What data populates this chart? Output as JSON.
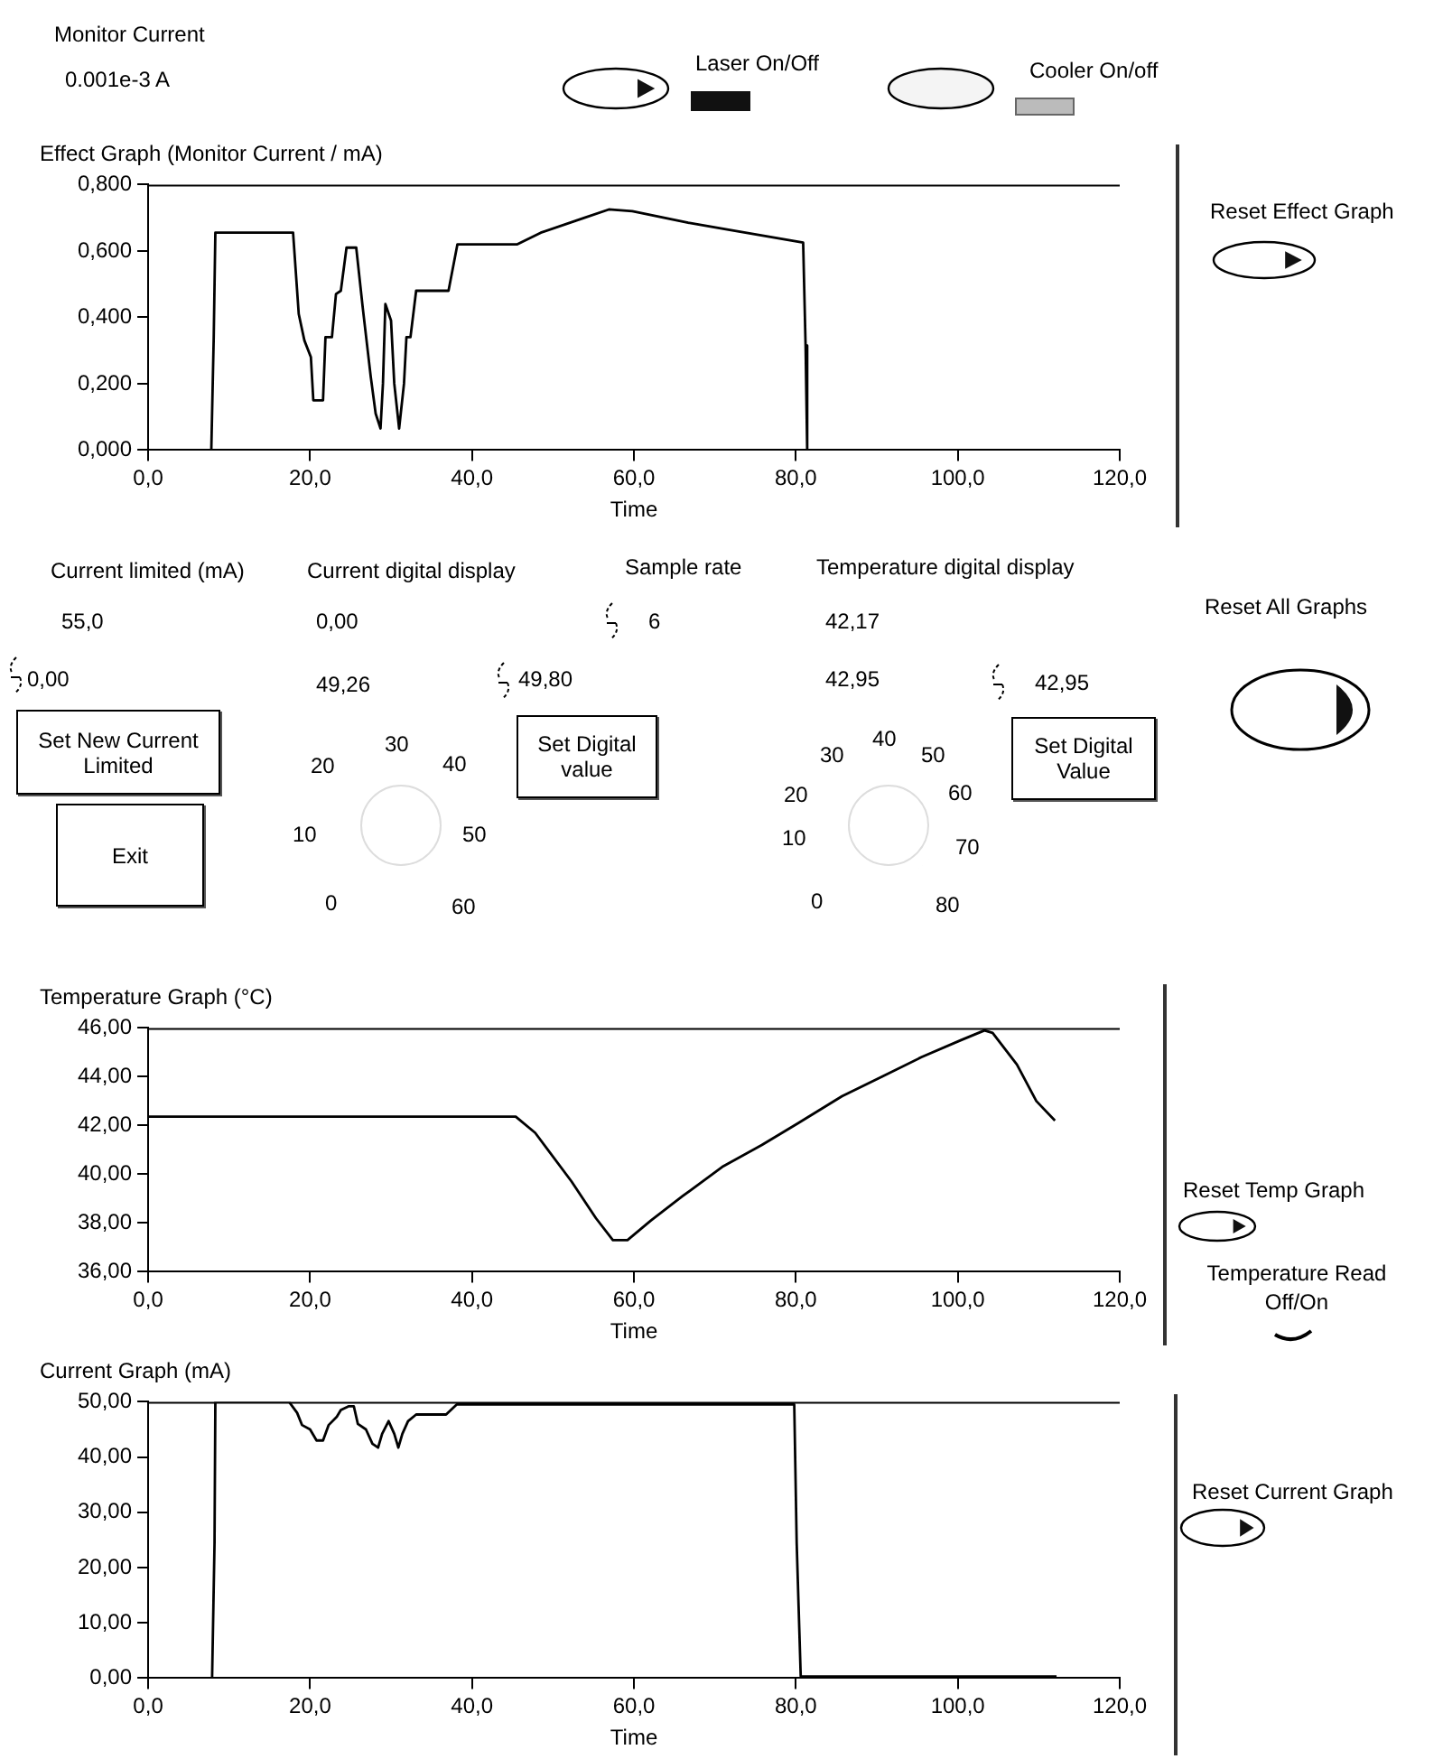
{
  "chart_data": [
    {
      "type": "line",
      "title": "Effect Graph (Monitor Current / mA)",
      "xlabel": "Time",
      "color": "#000000",
      "x": [
        0,
        7.8,
        8.1,
        8.3,
        17.9,
        18.6,
        19.3,
        20.1,
        20.4,
        21.6,
        21.9,
        22.7,
        23.2,
        23.8,
        24.5,
        25.7,
        26.5,
        27.5,
        28.1,
        28.7,
        29.0,
        29.3,
        30.0,
        30.4,
        31.0,
        31.6,
        31.9,
        32.4,
        33.1,
        37.1,
        38.2,
        45.6,
        48.5,
        53.9,
        56.9,
        59.8,
        66.7,
        80.9,
        81.2,
        81.4,
        112.3
      ],
      "values": [
        0,
        0,
        0.34,
        0.655,
        0.655,
        0.41,
        0.33,
        0.28,
        0.15,
        0.15,
        0.34,
        0.34,
        0.47,
        0.48,
        0.61,
        0.61,
        0.43,
        0.22,
        0.11,
        0.065,
        0.2,
        0.44,
        0.39,
        0.2,
        0.065,
        0.2,
        0.34,
        0.34,
        0.48,
        0.48,
        0.62,
        0.62,
        0.655,
        0.7,
        0.725,
        0.72,
        0.685,
        0.625,
        0.315,
        0,
        0
      ],
      "xlim": [
        0,
        120
      ],
      "xticks": [
        {
          "value": 0,
          "label": "0,0"
        },
        {
          "value": 20,
          "label": "20,0"
        },
        {
          "value": 40,
          "label": "40,0"
        },
        {
          "value": 60,
          "label": "60,0"
        },
        {
          "value": 80,
          "label": "80,0"
        },
        {
          "value": 100,
          "label": "100,0"
        },
        {
          "value": 120,
          "label": "120,0"
        }
      ],
      "ylim": [
        0,
        0.8
      ],
      "yticks": [
        {
          "value": 0,
          "label": "0,000"
        },
        {
          "value": 0.2,
          "label": "0,200"
        },
        {
          "value": 0.4,
          "label": "0,400"
        },
        {
          "value": 0.6,
          "label": "0,600"
        },
        {
          "value": 0.8,
          "label": "0,800"
        }
      ]
    },
    {
      "type": "line",
      "title": "Temperature Graph (°C)",
      "xlabel": "Time",
      "color": "#000000",
      "x": [
        0,
        45.4,
        47.8,
        52.3,
        55.3,
        57.4,
        59.2,
        62.1,
        66.0,
        70.9,
        75.8,
        80.3,
        85.7,
        90.6,
        95.5,
        100.4,
        103.3,
        104.3,
        107.3,
        109.7,
        112.0
      ],
      "values": [
        42.36,
        42.36,
        41.7,
        39.7,
        38.2,
        37.3,
        37.3,
        38.1,
        39.1,
        40.3,
        41.2,
        42.1,
        43.2,
        44.0,
        44.8,
        45.5,
        45.9,
        45.8,
        44.5,
        43.0,
        42.2
      ],
      "xlim": [
        0,
        120
      ],
      "xticks": [
        {
          "value": 0,
          "label": "0,0"
        },
        {
          "value": 20,
          "label": "20,0"
        },
        {
          "value": 40,
          "label": "40,0"
        },
        {
          "value": 60,
          "label": "60,0"
        },
        {
          "value": 80,
          "label": "80,0"
        },
        {
          "value": 100,
          "label": "100,0"
        },
        {
          "value": 120,
          "label": "120,0"
        }
      ],
      "ylim": [
        36,
        46
      ],
      "yticks": [
        {
          "value": 36,
          "label": "36,00"
        },
        {
          "value": 38,
          "label": "38,00"
        },
        {
          "value": 40,
          "label": "40,00"
        },
        {
          "value": 42,
          "label": "42,00"
        },
        {
          "value": 44,
          "label": "44,00"
        },
        {
          "value": 46,
          "label": "46,00"
        }
      ]
    },
    {
      "type": "line",
      "title": "Current Graph (mA)",
      "xlabel": "Time",
      "color": "#000000",
      "x": [
        0,
        7.9,
        8.2,
        8.3,
        17.4,
        18.4,
        19.0,
        20.0,
        20.8,
        21.6,
        22.3,
        23.3,
        23.8,
        24.8,
        25.4,
        25.9,
        26.9,
        27.7,
        28.4,
        28.9,
        29.7,
        30.4,
        30.9,
        31.4,
        32.1,
        33.1,
        36.8,
        38.1,
        79.8,
        80.1,
        80.6,
        112.2
      ],
      "values": [
        0,
        0,
        24.5,
        50,
        50,
        48,
        45.8,
        45,
        43,
        43,
        45.8,
        47.3,
        48.5,
        49.2,
        49.2,
        46,
        45,
        42.4,
        41.7,
        44.2,
        46.5,
        44.2,
        41.7,
        44.2,
        46.5,
        47.7,
        47.7,
        49.5,
        49.5,
        24.5,
        0.3,
        0.3
      ],
      "xlim": [
        0,
        120
      ],
      "xticks": [
        {
          "value": 0,
          "label": "0,0"
        },
        {
          "value": 20,
          "label": "20,0"
        },
        {
          "value": 40,
          "label": "40,0"
        },
        {
          "value": 60,
          "label": "60,0"
        },
        {
          "value": 80,
          "label": "80,0"
        },
        {
          "value": 100,
          "label": "100,0"
        },
        {
          "value": 120,
          "label": "120,0"
        }
      ],
      "ylim": [
        0,
        50
      ],
      "yticks": [
        {
          "value": 0,
          "label": "0,00"
        },
        {
          "value": 10,
          "label": "10,00"
        },
        {
          "value": 20,
          "label": "20,00"
        },
        {
          "value": 30,
          "label": "30,00"
        },
        {
          "value": 40,
          "label": "40,00"
        },
        {
          "value": 50,
          "label": "50,00"
        }
      ]
    },
    {
      "type": "other",
      "annotations": [
        "Monitor Current",
        "0.001e-3 A",
        "Laser On/Off",
        "Cooler On/off",
        "Reset Effect Graph",
        "Current limited (mA)",
        "55,0",
        "0,00",
        "Current digital display",
        "0,00",
        "49,26",
        "49,80",
        "Sample rate",
        "6",
        "Temperature digital display",
        "42,17",
        "42,95",
        "42,95",
        "Reset All Graphs",
        "Set New Current Limited",
        "Exit",
        "Set Digital value",
        "Set Digital Value",
        "0",
        "10",
        "20",
        "30",
        "40",
        "50",
        "60",
        "0",
        "10",
        "20",
        "30",
        "40",
        "50",
        "60",
        "70",
        "80",
        "Reset Temp Graph",
        "Temperature Read Off/On",
        "Reset Current Graph"
      ]
    }
  ]
}
